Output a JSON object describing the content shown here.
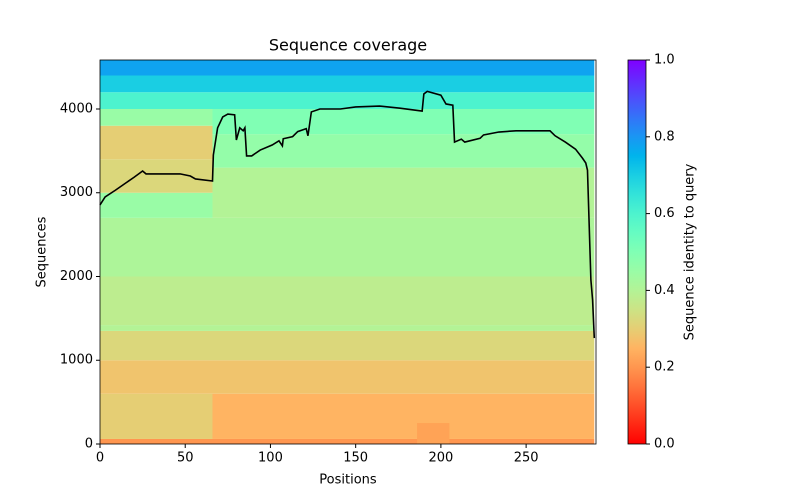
{
  "chart_data": {
    "type": "coverage",
    "title": "Sequence coverage",
    "x_label": "Positions",
    "y_label": "Sequences",
    "colorbar_label": "Sequence identity to query",
    "xlim": [
      0,
      291
    ],
    "ylim": [
      0,
      4585
    ],
    "xticks": [
      0,
      50,
      100,
      150,
      200,
      250
    ],
    "yticks": [
      0,
      1000,
      2000,
      3000,
      4000
    ],
    "colorbar_lim": [
      0,
      1
    ],
    "colorbar_ticks": [
      {
        "value": 0,
        "label": "0.0"
      },
      {
        "value": 0.2,
        "label": "0.2"
      },
      {
        "value": 0.4,
        "label": "0.4"
      },
      {
        "value": 0.6,
        "label": "0.6"
      },
      {
        "value": 0.8,
        "label": "0.8"
      },
      {
        "value": 1,
        "label": "1.0"
      }
    ],
    "line_color": "#000000",
    "bands": [
      {
        "x": [
          0,
          290
        ],
        "y": [
          0,
          60
        ],
        "identity": 0.2
      },
      {
        "x": [
          0,
          66
        ],
        "y": [
          60,
          600
        ],
        "identity": 0.3
      },
      {
        "x": [
          66,
          290
        ],
        "y": [
          60,
          600
        ],
        "identity": 0.25
      },
      {
        "x": [
          186,
          205
        ],
        "y": [
          0,
          250
        ],
        "identity": 0.22
      },
      {
        "x": [
          0,
          290
        ],
        "y": [
          600,
          1000
        ],
        "identity": 0.28
      },
      {
        "x": [
          0,
          290
        ],
        "y": [
          1000,
          1350
        ],
        "identity": 0.32
      },
      {
        "x": [
          0,
          290
        ],
        "y": [
          1350,
          1420
        ],
        "identity": 0.4
      },
      {
        "x": [
          0,
          290
        ],
        "y": [
          1420,
          2000
        ],
        "identity": 0.38
      },
      {
        "x": [
          0,
          290
        ],
        "y": [
          2000,
          2700
        ],
        "identity": 0.41
      },
      {
        "x": [
          0,
          66
        ],
        "y": [
          2700,
          3000
        ],
        "identity": 0.45
      },
      {
        "x": [
          66,
          290
        ],
        "y": [
          2700,
          3300
        ],
        "identity": 0.4
      },
      {
        "x": [
          0,
          66
        ],
        "y": [
          3000,
          3400
        ],
        "identity": 0.32
      },
      {
        "x": [
          66,
          290
        ],
        "y": [
          3300,
          3700
        ],
        "identity": 0.46
      },
      {
        "x": [
          0,
          66
        ],
        "y": [
          3400,
          3800
        ],
        "identity": 0.3
      },
      {
        "x": [
          66,
          290
        ],
        "y": [
          3700,
          4000
        ],
        "identity": 0.5
      },
      {
        "x": [
          0,
          66
        ],
        "y": [
          3800,
          4000
        ],
        "identity": 0.45
      },
      {
        "x": [
          0,
          290
        ],
        "y": [
          4000,
          4200
        ],
        "identity": 0.6
      },
      {
        "x": [
          0,
          290
        ],
        "y": [
          4200,
          4400
        ],
        "identity": 0.7
      },
      {
        "x": [
          0,
          290
        ],
        "y": [
          4400,
          4585
        ],
        "identity": 0.78
      }
    ],
    "coverage": {
      "x": [
        0,
        3,
        9,
        15,
        20,
        25,
        27,
        35,
        47,
        53,
        56,
        66,
        66.5,
        69,
        72,
        75,
        79,
        80,
        82,
        84,
        85,
        86,
        89,
        94,
        101,
        105,
        107,
        107.5,
        113,
        116,
        121,
        122,
        124,
        129,
        141,
        150,
        164,
        176,
        189,
        190,
        192,
        200,
        203,
        207,
        208,
        212,
        214,
        223,
        225,
        234,
        244,
        264,
        267,
        273,
        279,
        283,
        285,
        286,
        288,
        289,
        290
      ],
      "y": [
        2855,
        2950,
        3030,
        3115,
        3185,
        3260,
        3225,
        3225,
        3225,
        3200,
        3165,
        3140,
        3450,
        3775,
        3905,
        3940,
        3930,
        3630,
        3775,
        3740,
        3775,
        3440,
        3440,
        3510,
        3570,
        3620,
        3560,
        3645,
        3670,
        3730,
        3765,
        3680,
        3965,
        4000,
        4000,
        4025,
        4035,
        4010,
        3975,
        4180,
        4210,
        4165,
        4060,
        4045,
        3605,
        3640,
        3605,
        3650,
        3690,
        3725,
        3740,
        3740,
        3680,
        3605,
        3520,
        3415,
        3355,
        3270,
        1960,
        1720,
        1265
      ]
    }
  }
}
